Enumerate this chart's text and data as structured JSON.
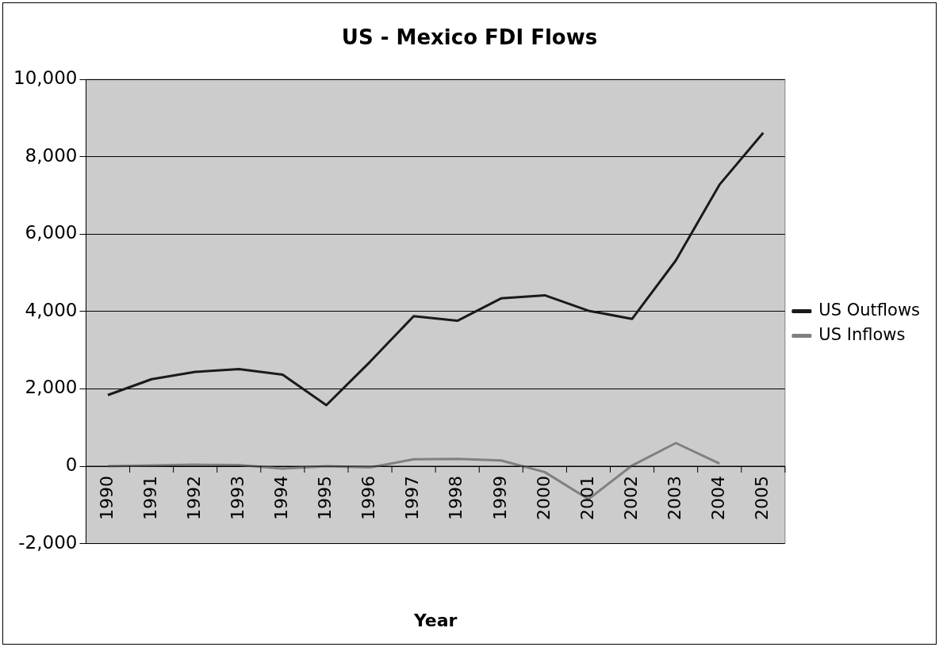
{
  "chart_data": {
    "type": "line",
    "title": "US - Mexico FDI Flows",
    "xlabel": "Year",
    "categories": [
      "1990",
      "1991",
      "1992",
      "1993",
      "1994",
      "1995",
      "1996",
      "1997",
      "1998",
      "1999",
      "2000",
      "2001",
      "2002",
      "2003",
      "2004",
      "2005"
    ],
    "series": [
      {
        "name": "US Outflows",
        "color": "#1a1a1a",
        "values": [
          1840,
          2250,
          2440,
          2510,
          2370,
          1580,
          2700,
          3880,
          3760,
          4340,
          4420,
          4020,
          3810,
          5320,
          7280,
          8620
        ]
      },
      {
        "name": "US Inflows",
        "color": "#808080",
        "values": [
          0,
          20,
          40,
          30,
          -60,
          0,
          -30,
          180,
          190,
          150,
          -150,
          -850,
          20,
          600,
          70,
          null
        ]
      }
    ],
    "ylim": [
      -2000,
      10000
    ],
    "yticks": [
      {
        "value": -2000,
        "label": "-2,000"
      },
      0,
      {
        "value": 2000,
        "label": "2,000"
      },
      {
        "value": 4000,
        "label": "4,000"
      },
      {
        "value": 6000,
        "label": "6,000"
      },
      {
        "value": 8000,
        "label": "8,000"
      },
      {
        "value": 10000,
        "label": "10,000"
      }
    ],
    "grid": "y",
    "legend": "right",
    "marker": "none",
    "line_style": "solid"
  }
}
